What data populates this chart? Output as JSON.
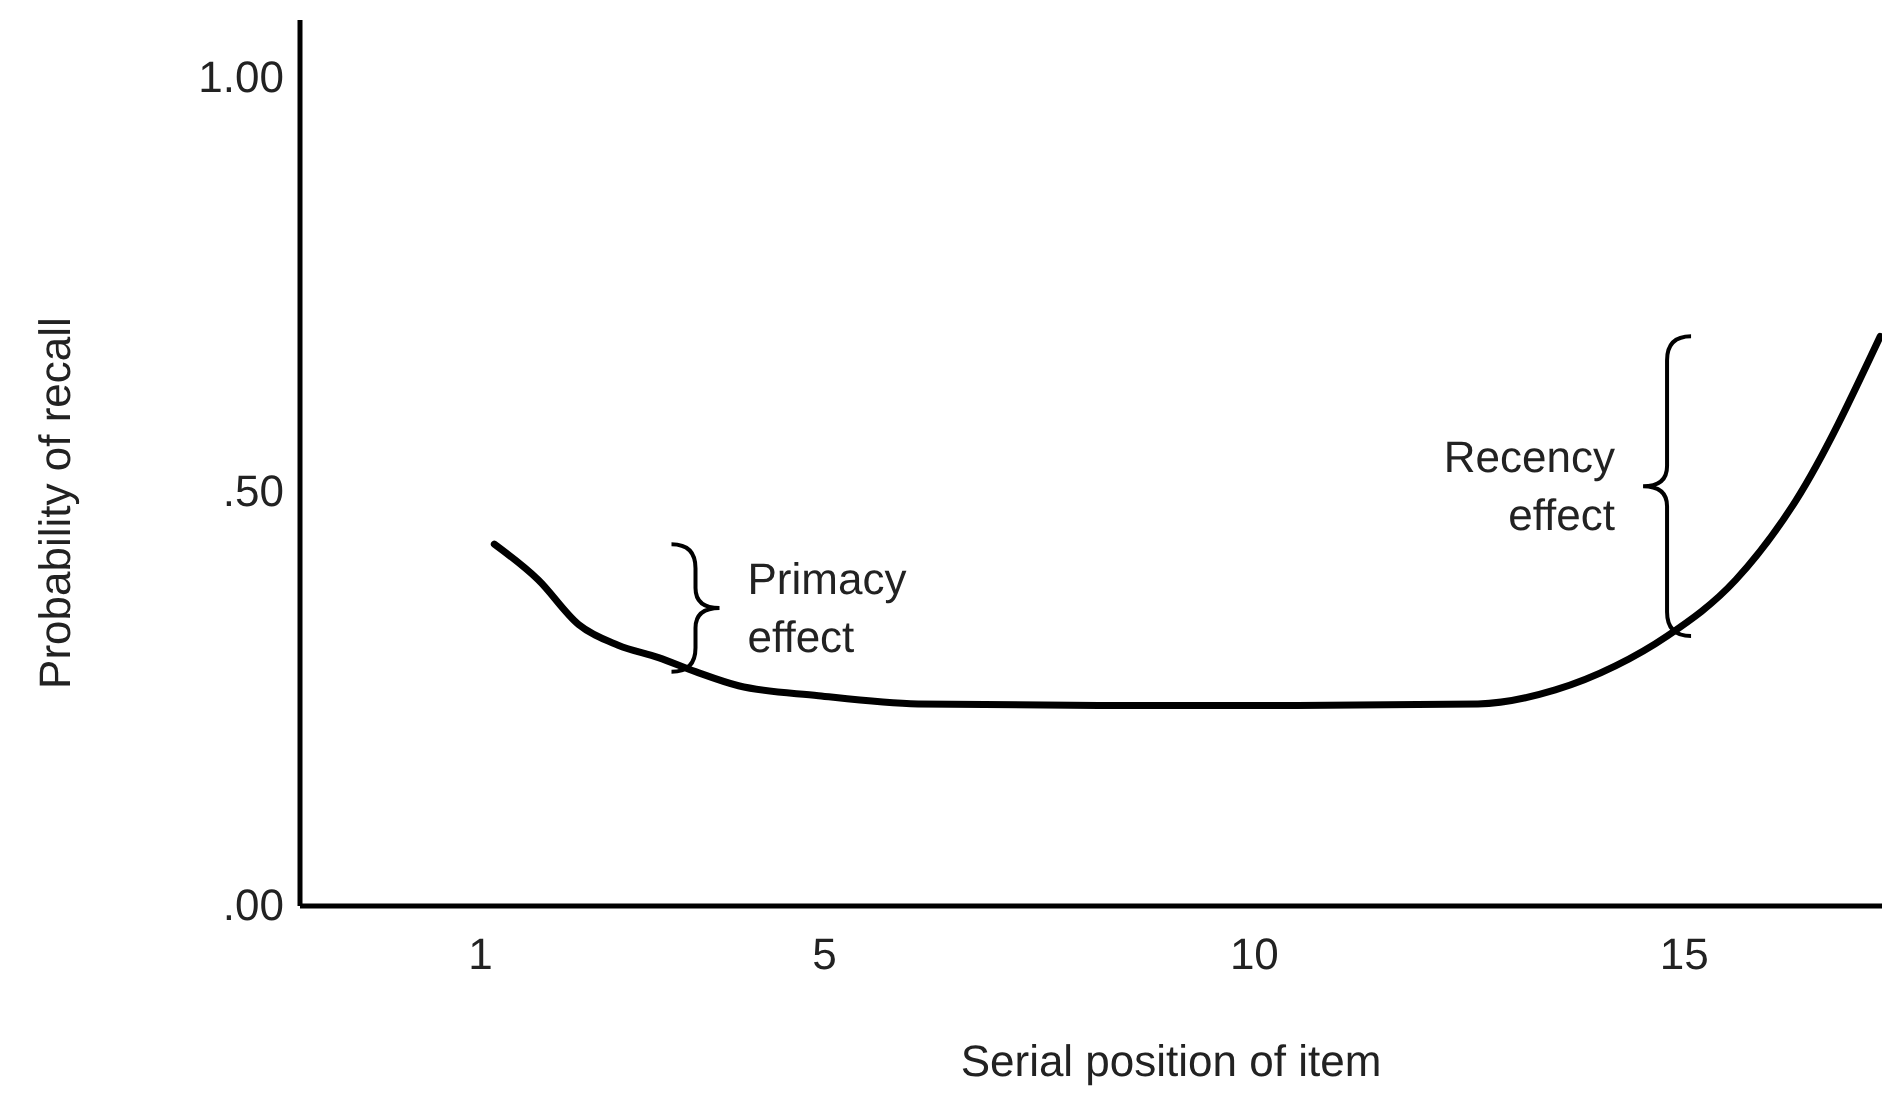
{
  "chart_data": {
    "type": "line",
    "xlabel": "Serial position of item",
    "ylabel": "Probability of recall",
    "x": [
      1.16,
      1.67,
      2.14,
      2.6,
      3.07,
      3.5,
      4.0,
      4.93,
      6.09,
      8.19,
      10.5,
      12.6,
      13.5,
      14.2,
      14.8,
      15.6,
      16.3,
      17.28
    ],
    "series": [
      {
        "color": "#000000",
        "values": [
          0.437,
          0.394,
          0.34,
          0.315,
          0.3,
          0.283,
          0.266,
          0.254,
          0.244,
          0.242,
          0.242,
          0.244,
          0.261,
          0.29,
          0.326,
          0.394,
          0.49,
          0.688
        ]
      }
    ],
    "xlim": [
      -1.1,
      17.3
    ],
    "xticks": [
      1,
      5,
      10,
      15
    ],
    "ylim": [
      0,
      1.07
    ],
    "yticks": [
      {
        "value": 0,
        "label": ".00"
      },
      {
        "value": 0.5,
        "label": ".50"
      },
      {
        "value": 1,
        "label": "1.00"
      }
    ],
    "annotations": [
      {
        "text": "Primacy\neffect",
        "x": 3.5,
        "y": 0.283
      },
      {
        "text": "Recency\neffect",
        "x": 14.8,
        "y": 0.326
      }
    ],
    "grid": false,
    "marker": "none",
    "line_style": "solid"
  }
}
